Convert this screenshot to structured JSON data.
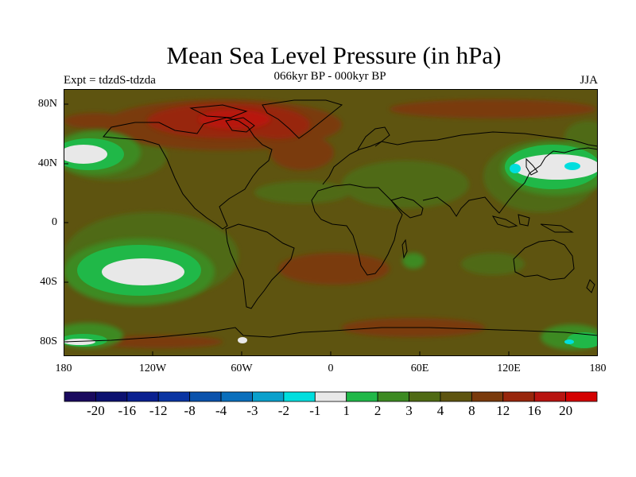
{
  "title": "Mean Sea Level Pressure (in hPa)",
  "subtitle": "066kyr BP - 000kyr BP",
  "left_label": "Expt = tdzdS-tdzda",
  "right_label": "JJA",
  "lat_labels": [
    "80N",
    "40N",
    "0",
    "40S",
    "80S"
  ],
  "lon_labels": [
    "180",
    "120W",
    "60W",
    "0",
    "60E",
    "120E",
    "180"
  ],
  "colorbar": {
    "labels": [
      "-20",
      "-16",
      "-12",
      "-8",
      "-4",
      "-3",
      "-2",
      "-1",
      "1",
      "2",
      "3",
      "4",
      "8",
      "12",
      "16",
      "20"
    ],
    "colors": [
      "#1a0a5e",
      "#0c1170",
      "#0a2090",
      "#0a34a2",
      "#0a52ac",
      "#0a6fbc",
      "#0aa0cc",
      "#00dede",
      "#e8e8e8",
      "#20b848",
      "#3c8a22",
      "#4f6a14",
      "#5e5410",
      "#7a3a0c",
      "#98260c",
      "#b81410",
      "#d40000"
    ]
  },
  "chart_data": {
    "type": "heatmap",
    "title": "Mean Sea Level Pressure (in hPa)",
    "subtitle": "066kyr BP - 000kyr BP",
    "experiment": "Expt = tdzdS-tdzda",
    "season": "JJA",
    "xlim": [
      -180,
      180
    ],
    "ylim": [
      -90,
      90
    ],
    "levels": [
      -20,
      -16,
      -12,
      -8,
      -4,
      -3,
      -2,
      -1,
      1,
      2,
      3,
      4,
      8,
      12,
      16,
      20
    ],
    "regions": [
      {
        "lon": -75,
        "lat": 72,
        "value": 14
      },
      {
        "lon": -40,
        "lat": 60,
        "value": 10
      },
      {
        "lon": -160,
        "lat": 45,
        "value": 0
      },
      {
        "lon": 150,
        "lat": 38,
        "value": 0
      },
      {
        "lon": -130,
        "lat": -32,
        "value": 0
      },
      {
        "lon": 0,
        "lat": 0,
        "value": 6
      }
    ]
  }
}
